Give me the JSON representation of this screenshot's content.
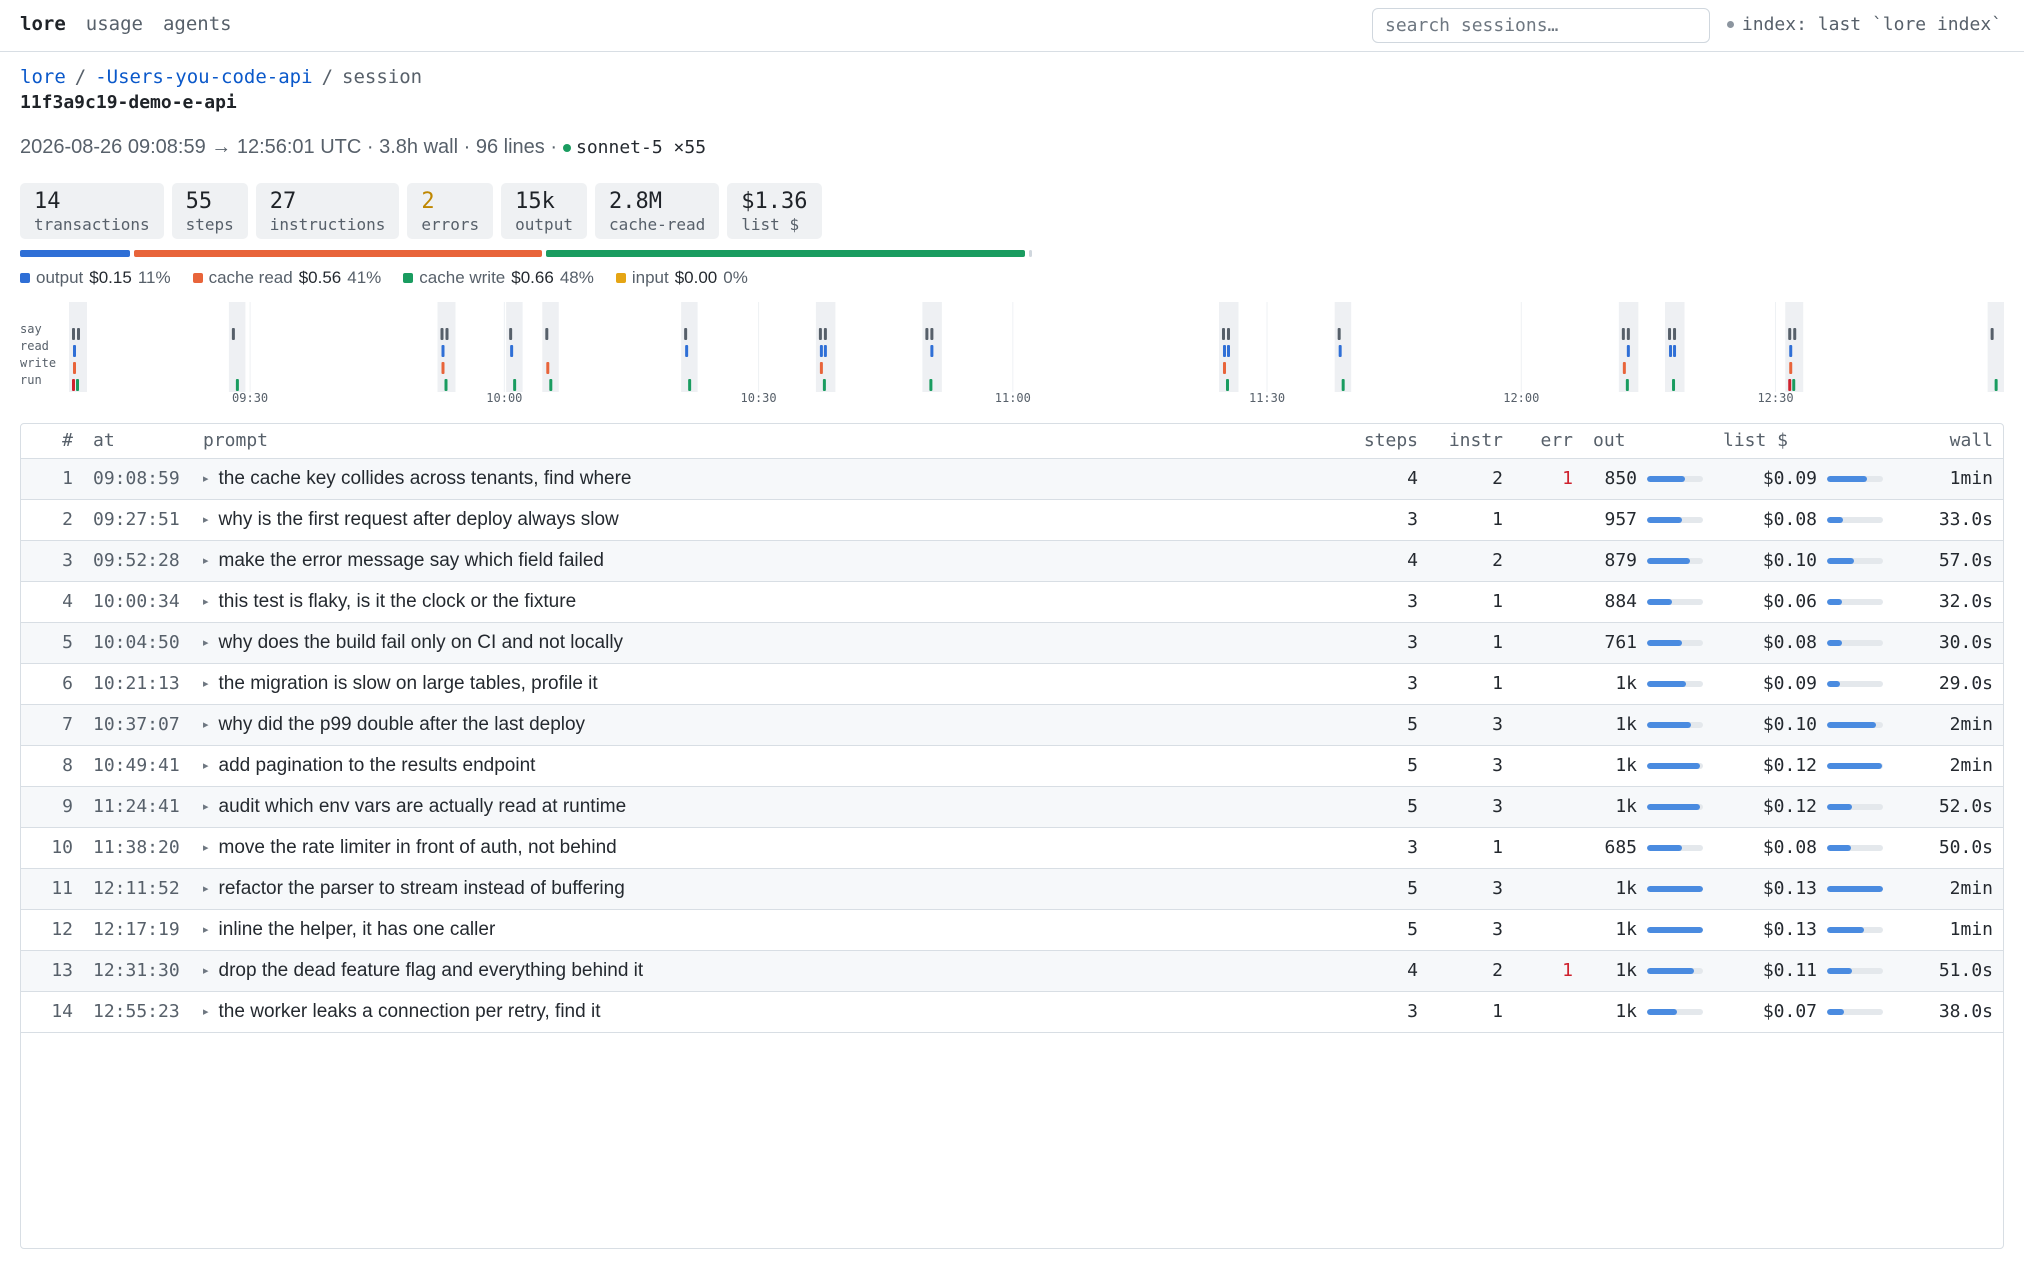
{
  "nav": {
    "brand": "lore",
    "links": [
      "usage",
      "agents"
    ]
  },
  "search": {
    "placeholder": "search sessions…"
  },
  "index_status": "index: last `lore index`",
  "breadcrumb": {
    "root": "lore",
    "project": "-Users-you-code-api",
    "current": "session"
  },
  "session_id": "11f3a9c19-demo-e-api",
  "meta": {
    "summary": "2026-08-26 09:08:59 → 12:56:01 UTC · 3.8h wall · 96 lines ·",
    "model": "sonnet-5 ×55"
  },
  "stats": [
    {
      "value": "14",
      "label": "transactions"
    },
    {
      "value": "55",
      "label": "steps"
    },
    {
      "value": "27",
      "label": "instructions"
    },
    {
      "value": "2",
      "label": "errors",
      "warn": true
    },
    {
      "value": "15k",
      "label": "output"
    },
    {
      "value": "2.8M",
      "label": "cache-read"
    },
    {
      "value": "$1.36",
      "label": "list $"
    }
  ],
  "cost_breakdown": [
    {
      "name": "output",
      "amount": "$0.15",
      "pct": "11%",
      "share": 0.11,
      "color": "#2f6fd6"
    },
    {
      "name": "cache read",
      "amount": "$0.56",
      "pct": "41%",
      "share": 0.41,
      "color": "#e8643a"
    },
    {
      "name": "cache write",
      "amount": "$0.66",
      "pct": "48%",
      "share": 0.48,
      "color": "#1a9c60"
    },
    {
      "name": "input",
      "amount": "$0.00",
      "pct": "0%",
      "share": 0.0,
      "color": "#e5a514"
    }
  ],
  "timeline": {
    "lanes": [
      "say",
      "read",
      "write",
      "run"
    ],
    "ticks": [
      "09:30",
      "10:00",
      "10:30",
      "11:00",
      "11:30",
      "12:00",
      "12:30"
    ],
    "start_time": "09:08:59",
    "end_time": "12:56:01"
  },
  "table": {
    "columns": [
      "#",
      "at",
      "prompt",
      "steps",
      "instr",
      "err",
      "out",
      "list $",
      "wall"
    ],
    "rows": [
      {
        "n": "1",
        "at": "09:08:59",
        "prompt": "the cache key collides across tenants, find where",
        "steps": "4",
        "instr": "2",
        "err": "1",
        "out": "850",
        "out_frac": 0.68,
        "cost": "$0.09",
        "cost_frac": 0.72,
        "wall": "1min"
      },
      {
        "n": "2",
        "at": "09:27:51",
        "prompt": "why is the first request after deploy always slow",
        "steps": "3",
        "instr": "1",
        "err": "",
        "out": "957",
        "out_frac": 0.62,
        "cost": "$0.08",
        "cost_frac": 0.28,
        "wall": "33.0s"
      },
      {
        "n": "3",
        "at": "09:52:28",
        "prompt": "make the error message say which field failed",
        "steps": "4",
        "instr": "2",
        "err": "",
        "out": "879",
        "out_frac": 0.76,
        "cost": "$0.10",
        "cost_frac": 0.48,
        "wall": "57.0s"
      },
      {
        "n": "4",
        "at": "10:00:34",
        "prompt": "this test is flaky, is it the clock or the fixture",
        "steps": "3",
        "instr": "1",
        "err": "",
        "out": "884",
        "out_frac": 0.45,
        "cost": "$0.06",
        "cost_frac": 0.26,
        "wall": "32.0s"
      },
      {
        "n": "5",
        "at": "10:04:50",
        "prompt": "why does the build fail only on CI and not locally",
        "steps": "3",
        "instr": "1",
        "err": "",
        "out": "761",
        "out_frac": 0.62,
        "cost": "$0.08",
        "cost_frac": 0.26,
        "wall": "30.0s"
      },
      {
        "n": "6",
        "at": "10:21:13",
        "prompt": "the migration is slow on large tables, profile it",
        "steps": "3",
        "instr": "1",
        "err": "",
        "out": "1k",
        "out_frac": 0.7,
        "cost": "$0.09",
        "cost_frac": 0.24,
        "wall": "29.0s"
      },
      {
        "n": "7",
        "at": "10:37:07",
        "prompt": "why did the p99 double after the last deploy",
        "steps": "5",
        "instr": "3",
        "err": "",
        "out": "1k",
        "out_frac": 0.78,
        "cost": "$0.10",
        "cost_frac": 0.88,
        "wall": "2min"
      },
      {
        "n": "8",
        "at": "10:49:41",
        "prompt": "add pagination to the results endpoint",
        "steps": "5",
        "instr": "3",
        "err": "",
        "out": "1k",
        "out_frac": 0.94,
        "cost": "$0.12",
        "cost_frac": 0.98,
        "wall": "2min"
      },
      {
        "n": "9",
        "at": "11:24:41",
        "prompt": "audit which env vars are actually read at runtime",
        "steps": "5",
        "instr": "3",
        "err": "",
        "out": "1k",
        "out_frac": 0.94,
        "cost": "$0.12",
        "cost_frac": 0.44,
        "wall": "52.0s"
      },
      {
        "n": "10",
        "at": "11:38:20",
        "prompt": "move the rate limiter in front of auth, not behind",
        "steps": "3",
        "instr": "1",
        "err": "",
        "out": "685",
        "out_frac": 0.62,
        "cost": "$0.08",
        "cost_frac": 0.42,
        "wall": "50.0s"
      },
      {
        "n": "11",
        "at": "12:11:52",
        "prompt": "refactor the parser to stream instead of buffering",
        "steps": "5",
        "instr": "3",
        "err": "",
        "out": "1k",
        "out_frac": 1.0,
        "cost": "$0.13",
        "cost_frac": 1.0,
        "wall": "2min"
      },
      {
        "n": "12",
        "at": "12:17:19",
        "prompt": "inline the helper, it has one caller",
        "steps": "5",
        "instr": "3",
        "err": "",
        "out": "1k",
        "out_frac": 1.0,
        "cost": "$0.13",
        "cost_frac": 0.66,
        "wall": "1min"
      },
      {
        "n": "13",
        "at": "12:31:30",
        "prompt": "drop the dead feature flag and everything behind it",
        "steps": "4",
        "instr": "2",
        "err": "1",
        "out": "1k",
        "out_frac": 0.84,
        "cost": "$0.11",
        "cost_frac": 0.44,
        "wall": "51.0s"
      },
      {
        "n": "14",
        "at": "12:55:23",
        "prompt": "the worker leaks a connection per retry, find it",
        "steps": "3",
        "instr": "1",
        "err": "",
        "out": "1k",
        "out_frac": 0.54,
        "cost": "$0.07",
        "cost_frac": 0.3,
        "wall": "38.0s"
      }
    ]
  }
}
